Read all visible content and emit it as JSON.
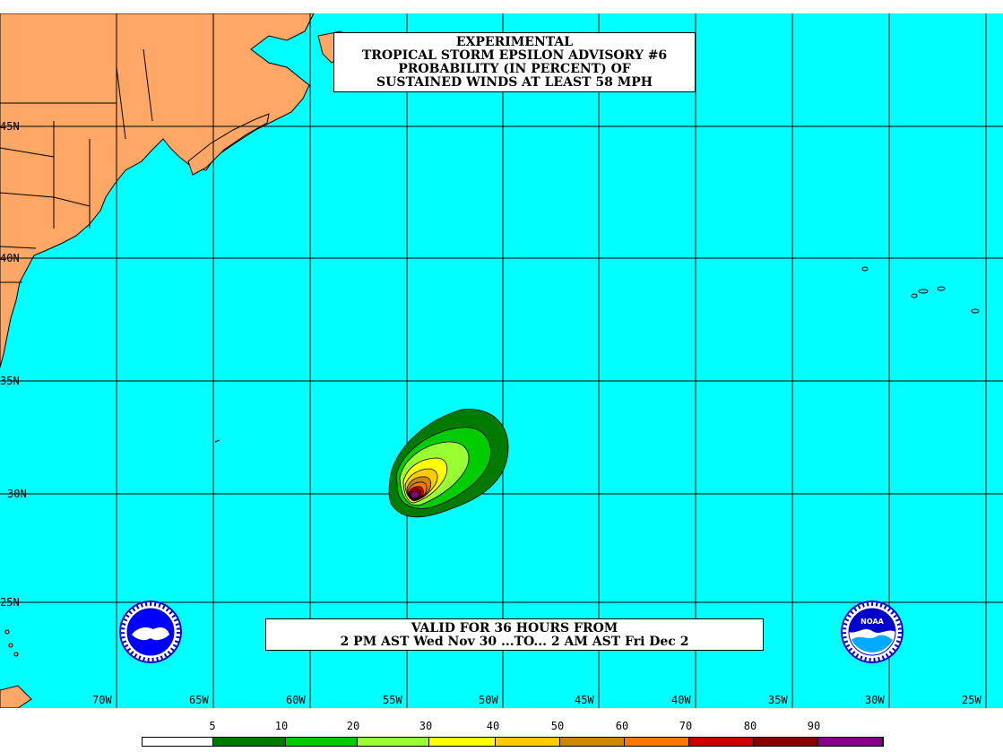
{
  "title": {
    "line1": "EXPERIMENTAL",
    "line2": "TROPICAL STORM EPSILON ADVISORY #6",
    "line3": "PROBABILITY (IN PERCENT) OF",
    "line4": "SUSTAINED WINDS AT LEAST 58 MPH"
  },
  "valid": {
    "line1": "VALID FOR 36 HOURS FROM",
    "line2": "2 PM AST Wed Nov 30 ...TO... 2 AM AST Fri Dec 2"
  },
  "lat_labels": [
    "45N",
    "40N",
    "35N",
    "30N",
    "25N"
  ],
  "lon_labels": [
    "70W",
    "65W",
    "60W",
    "55W",
    "50W",
    "45W",
    "40W",
    "35W",
    "30W",
    "25W"
  ],
  "legend": {
    "labels": [
      "5",
      "10",
      "20",
      "30",
      "40",
      "50",
      "60",
      "70",
      "80",
      "90"
    ],
    "colors": [
      "#ffffff",
      "#007a00",
      "#00cc00",
      "#99ff33",
      "#ffff00",
      "#ffcc00",
      "#cc8800",
      "#ff7700",
      "#cc0000",
      "#880000",
      "#880088"
    ]
  },
  "colors": {
    "ocean": "#00ffff",
    "land": "#ffa766",
    "grid": "#000000"
  },
  "logos": {
    "left": "nws-logo",
    "right": "noaa-logo",
    "right_text": "NOAA"
  }
}
